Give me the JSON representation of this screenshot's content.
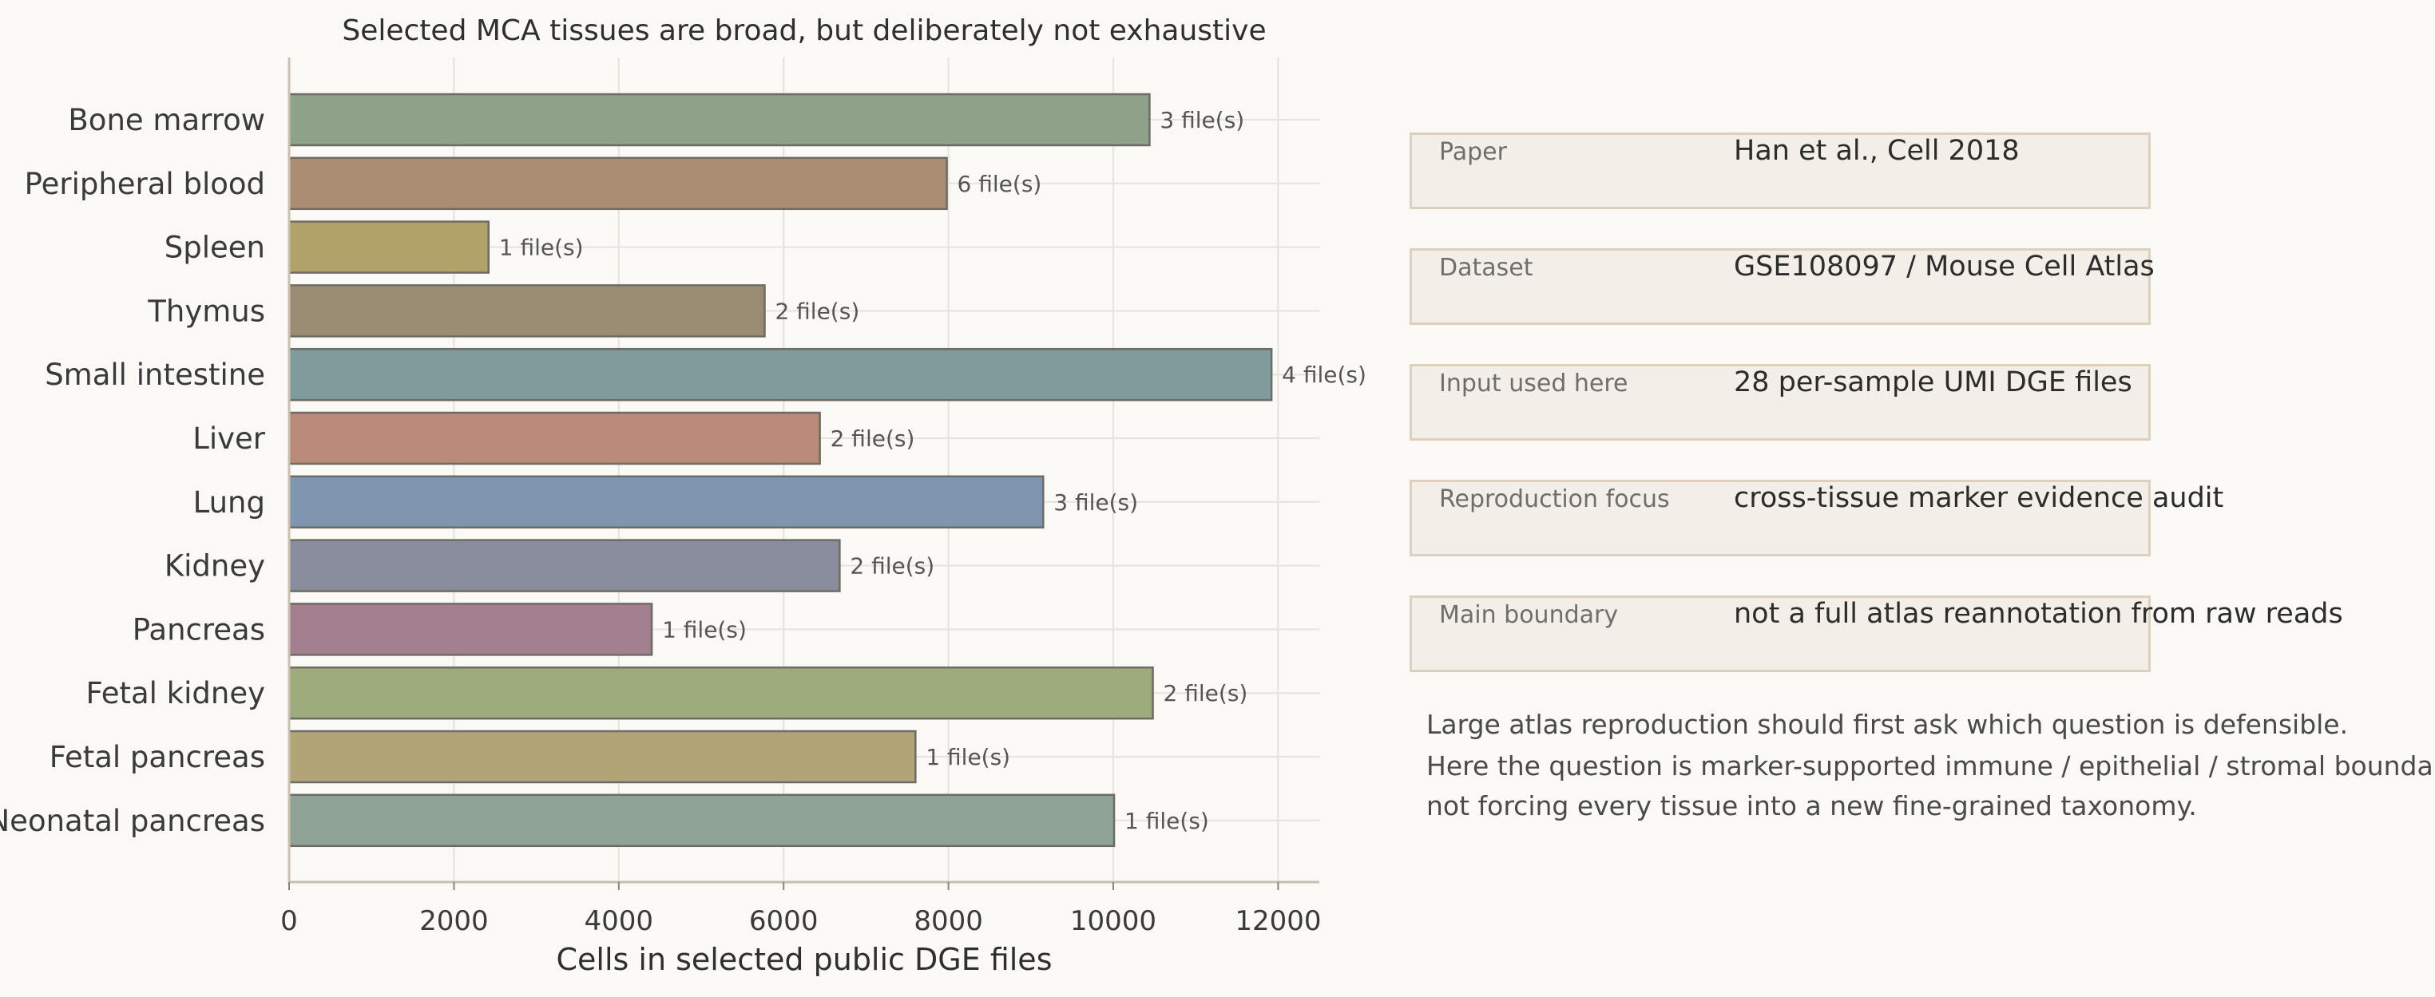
{
  "chart_data": {
    "type": "bar",
    "orientation": "horizontal",
    "title": "Selected MCA tissues are broad, but deliberately not exhaustive",
    "xlabel": "Cells in selected public DGE files",
    "ylabel": "",
    "xlim": [
      0,
      12500
    ],
    "xticks": [
      0,
      2000,
      4000,
      6000,
      8000,
      10000,
      12000
    ],
    "grid": true,
    "categories": [
      "Bone marrow",
      "Peripheral blood",
      "Spleen",
      "Thymus",
      "Small intestine",
      "Liver",
      "Lung",
      "Kidney",
      "Pancreas",
      "Fetal kidney",
      "Fetal pancreas",
      "Neonatal pancreas"
    ],
    "values": [
      10440,
      7980,
      2420,
      5770,
      11920,
      6440,
      9150,
      6680,
      4400,
      10480,
      7600,
      10010
    ],
    "bar_labels": [
      "3 file(s)",
      "6 file(s)",
      "1 file(s)",
      "2 file(s)",
      "4 file(s)",
      "2 file(s)",
      "3 file(s)",
      "2 file(s)",
      "1 file(s)",
      "2 file(s)",
      "1 file(s)",
      "1 file(s)"
    ],
    "colors": [
      "#8da288",
      "#aa8d73",
      "#b1a26a",
      "#9a8c72",
      "#7f9b9b",
      "#b98a77",
      "#7f96b0",
      "#888c9d",
      "#a47f8f",
      "#9eab7c",
      "#b1a477",
      "#8ea396"
    ]
  },
  "info_panel": [
    {
      "key": "Paper",
      "value": "Han et al., Cell 2018"
    },
    {
      "key": "Dataset",
      "value": "GSE108097 / Mouse Cell Atlas"
    },
    {
      "key": "Input used here",
      "value": "28 per-sample UMI DGE files"
    },
    {
      "key": "Reproduction focus",
      "value": "cross-tissue marker evidence audit"
    },
    {
      "key": "Main boundary",
      "value": "not a full atlas reannotation from raw reads"
    }
  ],
  "note_lines": [
    "Large atlas reproduction should first ask which question is defensible.",
    "Here the question is marker-supported immune / epithelial / stromal boundary,",
    "not forcing every tissue into a new fine-grained taxonomy."
  ]
}
